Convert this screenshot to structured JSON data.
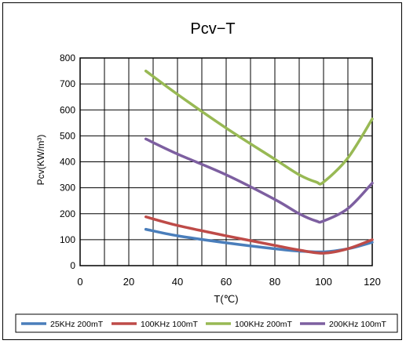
{
  "chart_data": {
    "type": "line",
    "title": "Pcv−T",
    "xlabel": "T(℃)",
    "ylabel": "Pcv(KW/m³)",
    "xlim": [
      0,
      120
    ],
    "ylim": [
      0,
      800
    ],
    "xticks": [
      0,
      20,
      40,
      60,
      80,
      100,
      120
    ],
    "yticks": [
      0,
      100,
      200,
      300,
      400,
      500,
      600,
      700,
      800
    ],
    "x_minor_gridlines": [
      10,
      30,
      50,
      70,
      90,
      110
    ],
    "grid": true,
    "legend_position": "bottom",
    "series": [
      {
        "name": "25KHz 200mT",
        "color": "#4a7ebb",
        "x": [
          27,
          40,
          60,
          80,
          90,
          100,
          110,
          120
        ],
        "y": [
          140,
          115,
          88,
          65,
          56,
          53,
          65,
          90
        ]
      },
      {
        "name": "100KHz 100mT",
        "color": "#be4b48",
        "x": [
          27,
          40,
          60,
          80,
          90,
          100,
          110,
          120
        ],
        "y": [
          188,
          155,
          115,
          78,
          60,
          48,
          65,
          100
        ]
      },
      {
        "name": "100KHz 200mT",
        "color": "#98b954",
        "x": [
          27,
          40,
          60,
          80,
          90,
          97,
          100,
          110,
          120
        ],
        "y": [
          750,
          660,
          530,
          410,
          350,
          322,
          322,
          415,
          565
        ]
      },
      {
        "name": "200KHz 100mT",
        "color": "#7d5fa0",
        "x": [
          27,
          40,
          60,
          80,
          90,
          97,
          100,
          110,
          120
        ],
        "y": [
          488,
          430,
          350,
          255,
          200,
          172,
          172,
          220,
          318
        ]
      }
    ]
  }
}
